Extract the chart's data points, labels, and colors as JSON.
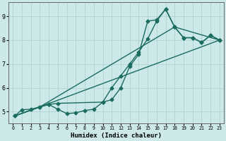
{
  "xlabel": "Humidex (Indice chaleur)",
  "xlim": [
    -0.5,
    23.5
  ],
  "ylim": [
    4.5,
    9.6
  ],
  "xticks": [
    0,
    1,
    2,
    3,
    4,
    5,
    6,
    7,
    8,
    9,
    10,
    11,
    12,
    13,
    14,
    15,
    16,
    17,
    18,
    19,
    20,
    21,
    22,
    23
  ],
  "yticks": [
    5,
    6,
    7,
    8,
    9
  ],
  "bg_color": "#cce8e8",
  "grid_color": "#aacfcf",
  "line_color": "#1a6b60",
  "line_width": 1.0,
  "marker": "D",
  "marker_size": 2.5,
  "line1": [
    [
      0.2,
      4.82
    ],
    [
      1,
      5.08
    ],
    [
      2,
      5.1
    ],
    [
      3,
      5.2
    ],
    [
      4,
      5.3
    ],
    [
      5,
      5.1
    ],
    [
      6,
      4.92
    ],
    [
      7,
      4.95
    ],
    [
      8,
      5.05
    ],
    [
      9,
      5.1
    ],
    [
      10,
      5.4
    ],
    [
      11,
      6.0
    ],
    [
      12,
      6.5
    ],
    [
      13,
      7.0
    ],
    [
      14,
      7.5
    ],
    [
      15,
      8.05
    ],
    [
      16,
      8.8
    ],
    [
      17,
      9.3
    ],
    [
      18,
      8.55
    ],
    [
      19,
      8.1
    ],
    [
      20,
      8.1
    ],
    [
      21,
      7.9
    ],
    [
      22,
      8.2
    ],
    [
      23,
      8.0
    ]
  ],
  "line2": [
    [
      0.2,
      4.82
    ],
    [
      3,
      5.2
    ],
    [
      4,
      5.3
    ],
    [
      5,
      5.35
    ],
    [
      10,
      5.4
    ],
    [
      11,
      5.5
    ],
    [
      12,
      6.0
    ],
    [
      13,
      6.9
    ],
    [
      14,
      7.4
    ],
    [
      15,
      8.8
    ],
    [
      16,
      8.85
    ],
    [
      17,
      9.3
    ],
    [
      18,
      8.55
    ],
    [
      19,
      8.1
    ],
    [
      20,
      8.1
    ],
    [
      21,
      7.9
    ],
    [
      22,
      8.2
    ],
    [
      23,
      8.0
    ]
  ],
  "line3": [
    [
      0.2,
      4.82
    ],
    [
      3,
      5.2
    ],
    [
      23,
      8.0
    ]
  ],
  "line4": [
    [
      0.2,
      4.82
    ],
    [
      3,
      5.2
    ],
    [
      18,
      8.55
    ],
    [
      23,
      8.0
    ]
  ]
}
